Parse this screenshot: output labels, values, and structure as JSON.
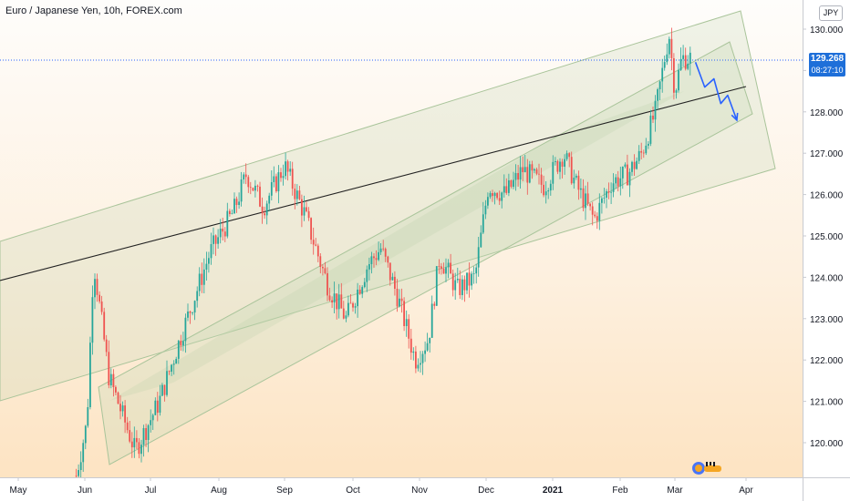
{
  "title": "Euro / Japanese Yen, 10h, FOREX.com",
  "currency_button": "JPY",
  "last_price": "129.268",
  "countdown": "08:27:10",
  "colors": {
    "up": "#26a69a",
    "down": "#ef5350",
    "channel_fill": "#c8d9b8",
    "projection": "#2962ff",
    "price_tag": "#1e6fd9"
  },
  "chart_data": {
    "type": "candlestick",
    "instrument": "EURJPY",
    "timeframe": "10h",
    "ylim": [
      119.1,
      130.6
    ],
    "y_ticks": [
      "130.000",
      "129.000",
      "128.000",
      "127.000",
      "126.000",
      "125.000",
      "124.000",
      "123.000",
      "122.000",
      "121.000",
      "120.000"
    ],
    "x_ticks": [
      "May",
      "Jun",
      "Jul",
      "Aug",
      "Sep",
      "Oct",
      "Nov",
      "Dec",
      "2021",
      "Feb",
      "Mar",
      "Apr"
    ],
    "approx_path": [
      {
        "date": "2020-05-28",
        "price": 119.2
      },
      {
        "date": "2020-06-02",
        "price": 120.5
      },
      {
        "date": "2020-06-05",
        "price": 124.4
      },
      {
        "date": "2020-06-12",
        "price": 121.6
      },
      {
        "date": "2020-06-24",
        "price": 119.8
      },
      {
        "date": "2020-07-05",
        "price": 121.0
      },
      {
        "date": "2020-07-15",
        "price": 122.6
      },
      {
        "date": "2020-07-28",
        "price": 124.6
      },
      {
        "date": "2020-08-08",
        "price": 125.6
      },
      {
        "date": "2020-08-14",
        "price": 126.5
      },
      {
        "date": "2020-08-22",
        "price": 125.7
      },
      {
        "date": "2020-09-01",
        "price": 126.7
      },
      {
        "date": "2020-09-10",
        "price": 125.5
      },
      {
        "date": "2020-09-20",
        "price": 123.8
      },
      {
        "date": "2020-09-28",
        "price": 123.0
      },
      {
        "date": "2020-10-08",
        "price": 124.3
      },
      {
        "date": "2020-10-14",
        "price": 124.7
      },
      {
        "date": "2020-10-22",
        "price": 123.5
      },
      {
        "date": "2020-10-30",
        "price": 122.0
      },
      {
        "date": "2020-11-05",
        "price": 122.5
      },
      {
        "date": "2020-11-10",
        "price": 124.5
      },
      {
        "date": "2020-11-18",
        "price": 123.7
      },
      {
        "date": "2020-11-26",
        "price": 124.0
      },
      {
        "date": "2020-12-02",
        "price": 126.2
      },
      {
        "date": "2020-12-10",
        "price": 126.0
      },
      {
        "date": "2020-12-18",
        "price": 126.6
      },
      {
        "date": "2020-12-28",
        "price": 126.2
      },
      {
        "date": "2021-01-06",
        "price": 127.0
      },
      {
        "date": "2021-01-12",
        "price": 126.2
      },
      {
        "date": "2021-01-20",
        "price": 125.4
      },
      {
        "date": "2021-01-28",
        "price": 126.3
      },
      {
        "date": "2021-02-05",
        "price": 126.5
      },
      {
        "date": "2021-02-12",
        "price": 127.0
      },
      {
        "date": "2021-02-19",
        "price": 128.0
      },
      {
        "date": "2021-02-26",
        "price": 129.9
      },
      {
        "date": "2021-03-01",
        "price": 128.5
      },
      {
        "date": "2021-03-04",
        "price": 129.3
      },
      {
        "date": "2021-03-08",
        "price": 129.3
      }
    ],
    "projection": [
      {
        "date": "2021-03-10",
        "price": 129.2
      },
      {
        "date": "2021-03-14",
        "price": 128.6
      },
      {
        "date": "2021-03-18",
        "price": 128.8
      },
      {
        "date": "2021-03-21",
        "price": 128.2
      },
      {
        "date": "2021-03-24",
        "price": 128.4
      },
      {
        "date": "2021-03-28",
        "price": 127.8
      }
    ]
  }
}
